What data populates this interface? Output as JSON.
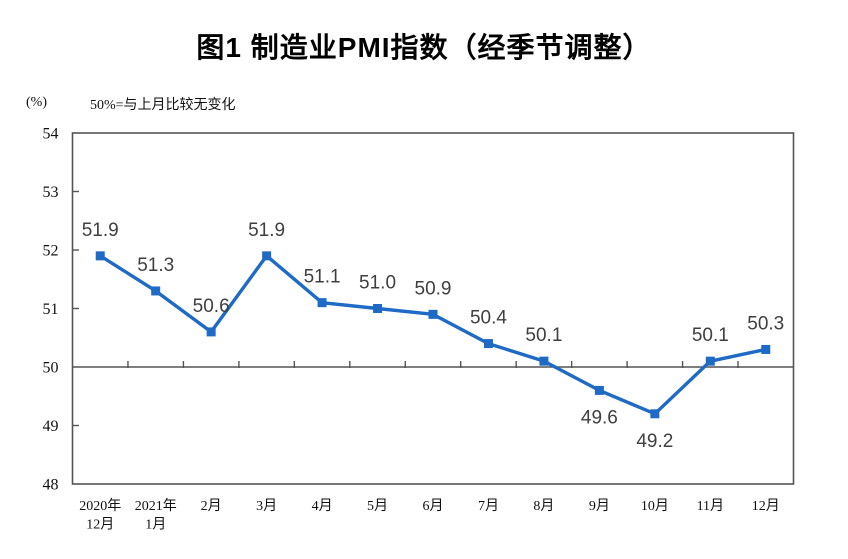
{
  "chart_data": {
    "type": "line",
    "title": "图1 制造业PMI指数（经季节调整）",
    "unit_label": "(%)",
    "note": "50%=与上月比较无变化",
    "categories": [
      [
        "2020年",
        "12月"
      ],
      [
        "2021年",
        "1月"
      ],
      [
        "2月"
      ],
      [
        "3月"
      ],
      [
        "4月"
      ],
      [
        "5月"
      ],
      [
        "6月"
      ],
      [
        "7月"
      ],
      [
        "8月"
      ],
      [
        "9月"
      ],
      [
        "10月"
      ],
      [
        "11月"
      ],
      [
        "12月"
      ]
    ],
    "values": [
      51.9,
      51.3,
      50.6,
      51.9,
      51.1,
      51.0,
      50.9,
      50.4,
      50.1,
      49.6,
      49.2,
      50.1,
      50.3
    ],
    "label_below": [
      false,
      false,
      false,
      false,
      false,
      false,
      false,
      false,
      false,
      true,
      true,
      false,
      false
    ],
    "ylim": [
      48,
      54
    ],
    "ytick_step": 1,
    "ytick_labels": [
      "48",
      "49",
      "50",
      "51",
      "52",
      "53",
      "54"
    ],
    "baseline_value": 50,
    "grid": false,
    "legend_position": "none",
    "marker": "square",
    "colors": {
      "line": "#1E6AC5",
      "marker": "#1E6AC5",
      "data_label": "#3F3F3F",
      "axis": "#545454",
      "text": "#111111"
    }
  }
}
